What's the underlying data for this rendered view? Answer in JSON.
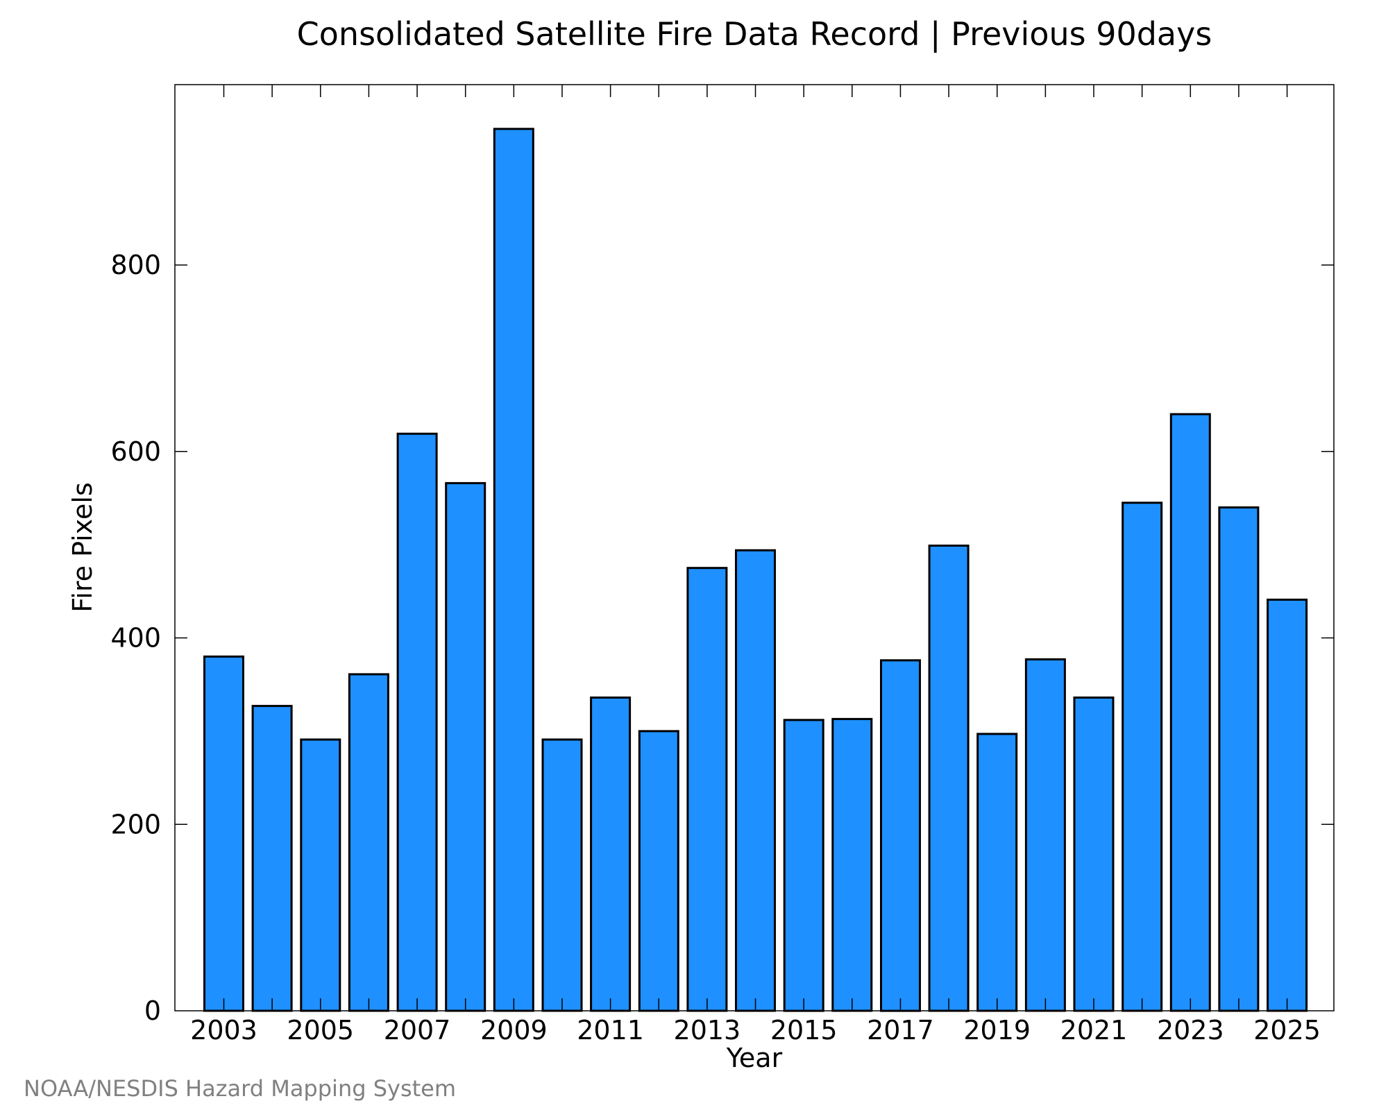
{
  "chart_data": {
    "type": "bar",
    "title": "Consolidated Satellite Fire Data Record | Previous 90days",
    "xlabel": "Year",
    "ylabel": "Fire Pixels",
    "categories": [
      "2003",
      "2004",
      "2005",
      "2006",
      "2007",
      "2008",
      "2009",
      "2010",
      "2011",
      "2012",
      "2013",
      "2014",
      "2015",
      "2016",
      "2017",
      "2018",
      "2019",
      "2020",
      "2021",
      "2022",
      "2023",
      "2024",
      "2025"
    ],
    "x_tick_labels": [
      "2003",
      "2005",
      "2007",
      "2009",
      "2011",
      "2013",
      "2015",
      "2017",
      "2019",
      "2021",
      "2023",
      "2025"
    ],
    "values": [
      380,
      327,
      291,
      361,
      619,
      566,
      946,
      291,
      336,
      300,
      475,
      494,
      312,
      313,
      376,
      499,
      297,
      377,
      336,
      545,
      640,
      540,
      441
    ],
    "ylim": [
      0,
      1000
    ],
    "y_ticks": [
      0,
      200,
      400,
      600,
      800
    ],
    "grid": false,
    "bar_color": "#1e90ff",
    "edge_color": "#000000"
  },
  "credit": "NOAA/NESDIS Hazard Mapping System"
}
